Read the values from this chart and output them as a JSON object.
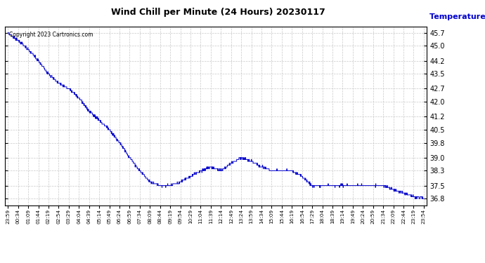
{
  "title": "Wind Chill per Minute (24 Hours) 20230117",
  "ylabel": "Temperature  (°F)",
  "copyright_text": "Copyright 2023 Cartronics.com",
  "line_color": "#0000cc",
  "bg_color": "#ffffff",
  "grid_color": "#bbbbbb",
  "yticks": [
    36.8,
    37.5,
    38.3,
    39.0,
    39.8,
    40.5,
    41.2,
    42.0,
    42.7,
    43.5,
    44.2,
    45.0,
    45.7
  ],
  "ylim": [
    36.45,
    46.05
  ],
  "xtick_labels": [
    "23:59",
    "00:34",
    "01:09",
    "01:44",
    "02:19",
    "02:54",
    "03:29",
    "04:04",
    "04:39",
    "05:14",
    "05:49",
    "06:24",
    "06:59",
    "07:34",
    "08:09",
    "08:44",
    "09:19",
    "09:54",
    "10:29",
    "11:04",
    "11:39",
    "12:14",
    "12:49",
    "13:24",
    "13:59",
    "14:34",
    "15:09",
    "15:44",
    "16:19",
    "16:54",
    "17:29",
    "18:04",
    "18:39",
    "19:14",
    "19:49",
    "20:24",
    "20:59",
    "21:34",
    "22:09",
    "22:44",
    "23:19",
    "23:54"
  ]
}
